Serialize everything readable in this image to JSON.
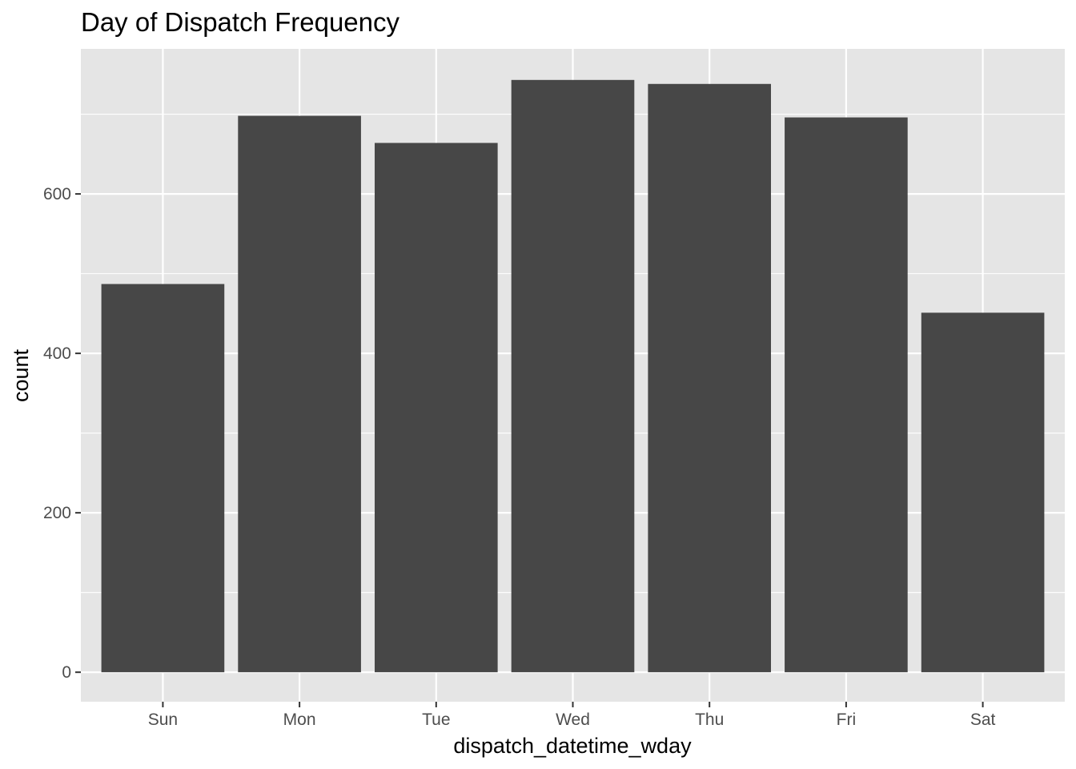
{
  "chart_data": {
    "type": "bar",
    "title": "Day of Dispatch Frequency",
    "xlabel": "dispatch_datetime_wday",
    "ylabel": "count",
    "categories": [
      "Sun",
      "Mon",
      "Tue",
      "Wed",
      "Thu",
      "Fri",
      "Sat"
    ],
    "values": [
      487,
      698,
      664,
      743,
      738,
      696,
      451
    ],
    "ylim": [
      -37,
      782
    ],
    "yticks": [
      0,
      200,
      400,
      600
    ],
    "yminor": [
      100,
      300,
      500,
      700
    ],
    "grid": true,
    "legend": "none",
    "colors": {
      "bar": "#474747",
      "panel": "#e5e5e5",
      "grid": "#ffffff",
      "tick": "#333333"
    }
  }
}
